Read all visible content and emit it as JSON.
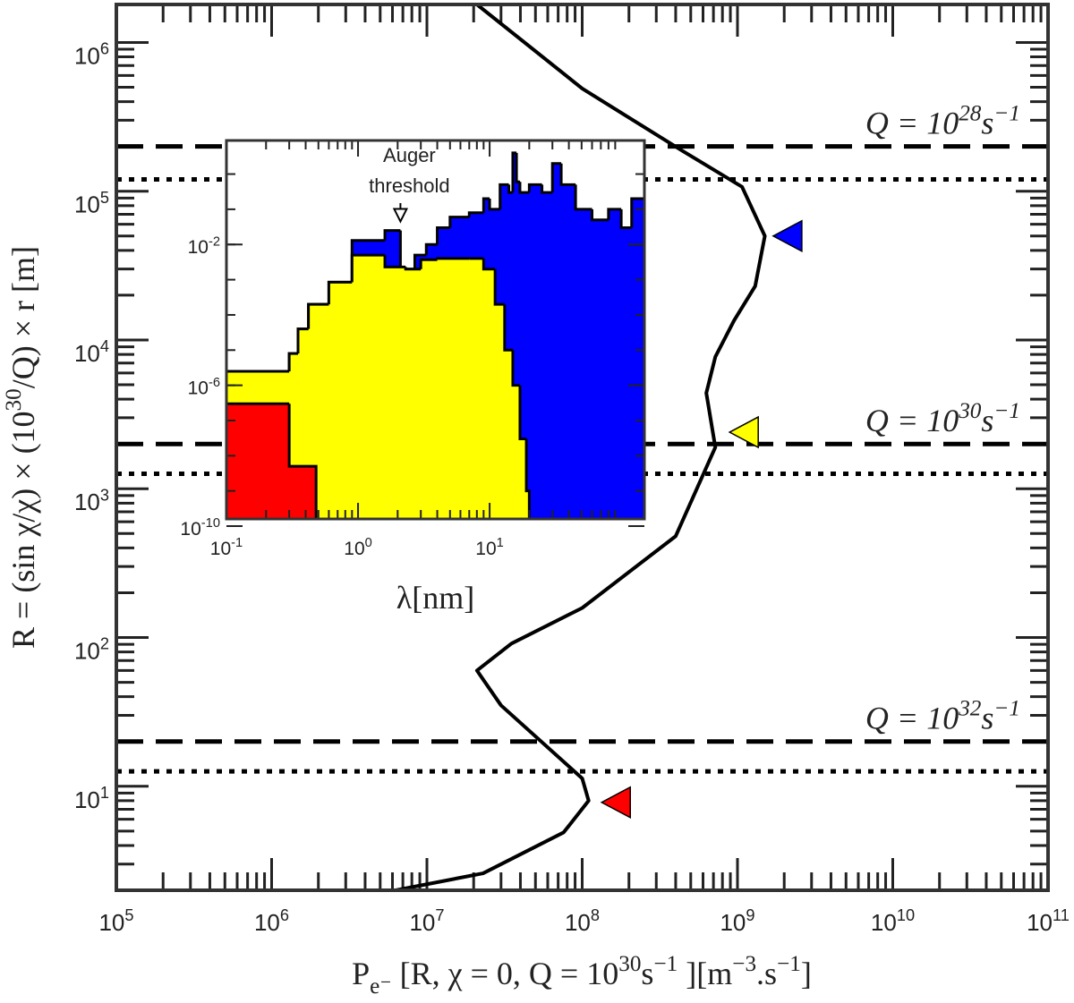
{
  "chart_data": {
    "type": "line",
    "x_label": [
      {
        "text": "P",
        "style": "normal"
      },
      {
        "text": "e⁻",
        "style": "sub"
      },
      {
        "text": " [R, χ = 0, Q = 10",
        "style": "normal"
      },
      {
        "text": "30",
        "style": "sup"
      },
      {
        "text": "s",
        "style": "normal"
      },
      {
        "text": "−1",
        "style": "sup"
      },
      {
        "text": " ][m",
        "style": "normal"
      },
      {
        "text": "−3",
        "style": "sup"
      },
      {
        "text": ".s",
        "style": "normal"
      },
      {
        "text": "−1",
        "style": "sup"
      },
      {
        "text": "]",
        "style": "normal"
      }
    ],
    "y_label": [
      {
        "text": "R = (sin χ/χ) × (10",
        "style": "normal"
      },
      {
        "text": "30",
        "style": "sup"
      },
      {
        "text": "/Q) × r [m]",
        "style": "normal"
      }
    ],
    "xscale": "log",
    "yscale": "log",
    "xlim": [
      100000,
      100000000000
    ],
    "ylim": [
      2,
      1800000
    ],
    "xticks": [
      {
        "value": 100000,
        "label": "10",
        "exp": "5"
      },
      {
        "value": 1000000,
        "label": "10",
        "exp": "6"
      },
      {
        "value": 10000000,
        "label": "10",
        "exp": "7"
      },
      {
        "value": 100000000,
        "label": "10",
        "exp": "8"
      },
      {
        "value": 1000000000,
        "label": "10",
        "exp": "9"
      },
      {
        "value": 10000000000,
        "label": "10",
        "exp": "10"
      },
      {
        "value": 100000000000,
        "label": "10",
        "exp": "11"
      }
    ],
    "yticks": [
      {
        "value": 10,
        "label": "10",
        "exp": "1"
      },
      {
        "value": 100,
        "label": "10",
        "exp": "2"
      },
      {
        "value": 1000,
        "label": "10",
        "exp": "3"
      },
      {
        "value": 10000,
        "label": "10",
        "exp": "4"
      },
      {
        "value": 100000,
        "label": "10",
        "exp": "5"
      },
      {
        "value": 1000000,
        "label": "10",
        "exp": "6"
      }
    ],
    "series": [
      {
        "color": "#000000",
        "x": [
          21000000,
          100000000,
          430000000,
          1070000000,
          1500000000,
          1300000000,
          950000000,
          720000000,
          630000000,
          720000000,
          400000000,
          100000000,
          35000000,
          21000000,
          30000000,
          100000000,
          110000000,
          76000000,
          23000000,
          6300000
        ],
        "values": [
          1800000,
          490000,
          190000,
          107000,
          50000,
          23000,
          13500,
          7700,
          4400,
          1900,
          480,
          158,
          91,
          60,
          35,
          11.3,
          8,
          4.9,
          2.6,
          2.0
        ]
      }
    ],
    "hlines": [
      {
        "value": 200000,
        "style": "dashed",
        "label": [
          {
            "text": "Q = 10",
            "style": "normal"
          },
          {
            "text": "28",
            "style": "sup"
          },
          {
            "text": "s",
            "style": "normal"
          },
          {
            "text": "−1",
            "style": "sup"
          }
        ]
      },
      {
        "value": 120000,
        "style": "dotted"
      },
      {
        "value": 2000,
        "style": "dashed",
        "label": [
          {
            "text": "Q = 10",
            "style": "normal"
          },
          {
            "text": "30",
            "style": "sup"
          },
          {
            "text": "s",
            "style": "normal"
          },
          {
            "text": "−1",
            "style": "sup"
          }
        ]
      },
      {
        "value": 1260,
        "style": "dotted"
      },
      {
        "value": 20,
        "style": "dashed",
        "label": [
          {
            "text": "Q = 10",
            "style": "normal"
          },
          {
            "text": "32",
            "style": "sup"
          },
          {
            "text": "s",
            "style": "normal"
          },
          {
            "text": "−1",
            "style": "sup"
          }
        ]
      },
      {
        "value": 12.6,
        "style": "dotted"
      }
    ],
    "markers": [
      {
        "x": 2100000000,
        "y": 50000,
        "color": "#0000ff"
      },
      {
        "x": 1100000000,
        "y": 2400,
        "color": "#ffff00"
      },
      {
        "x": 165000000,
        "y": 7.8,
        "color": "#ff0000"
      }
    ],
    "inset": {
      "type": "step-area",
      "x_label": [
        {
          "text": "λ[nm]",
          "style": "normal"
        }
      ],
      "xlim": [
        0.1,
        150
      ],
      "ylim": [
        1.6e-10,
        9
      ],
      "xticks": [
        {
          "value": 0.1,
          "label": "10",
          "exp": "-1"
        },
        {
          "value": 1,
          "label": "10",
          "exp": "0"
        },
        {
          "value": 10,
          "label": "10",
          "exp": "1"
        }
      ],
      "yticks": [
        {
          "value": 1e-10,
          "label": "10",
          "exp": "-10"
        },
        {
          "value": 1e-06,
          "label": "10",
          "exp": "-6"
        },
        {
          "value": 0.01,
          "label": "10",
          "exp": "-2"
        }
      ],
      "annotation": {
        "lines": [
          "Auger",
          "threshold"
        ],
        "x": 2.1,
        "y": 0.04
      },
      "series": [
        {
          "color": "#0000ff",
          "bins": [
            0.1,
            0.3,
            0.35,
            0.42,
            0.6,
            0.9,
            1.6,
            2.1,
            2.7,
            3.3,
            4,
            5,
            7,
            9,
            10,
            12,
            14,
            15,
            16,
            17,
            20,
            25,
            30,
            35,
            45,
            60,
            80,
            100,
            120,
            150
          ],
          "values": [
            2.5e-06,
            8e-06,
            4e-05,
            0.0002,
            0.00085,
            0.013,
            0.025,
            0.002,
            0.005,
            0.01,
            0.03,
            0.06,
            0.08,
            0.2,
            0.1,
            0.5,
            0.3,
            4,
            0.6,
            0.3,
            0.5,
            0.3,
            2,
            0.5,
            0.1,
            0.05,
            0.1,
            0.03,
            0.2
          ]
        },
        {
          "color": "#ffff00",
          "bins": [
            0.1,
            0.3,
            0.35,
            0.42,
            0.6,
            0.9,
            1.6,
            2.3,
            3,
            4,
            7,
            9,
            11,
            13,
            15,
            17,
            19,
            20
          ],
          "values": [
            2.5e-06,
            8e-06,
            4e-05,
            0.0002,
            0.00085,
            0.005,
            0.0023,
            0.002,
            0.0037,
            0.004,
            0.004,
            0.002,
            0.0002,
            1e-05,
            1e-06,
            3e-08,
            1e-09
          ]
        },
        {
          "color": "#ff0000",
          "bins": [
            0.1,
            0.3,
            0.48
          ],
          "values": [
            3e-07,
            5e-09
          ]
        }
      ]
    }
  }
}
